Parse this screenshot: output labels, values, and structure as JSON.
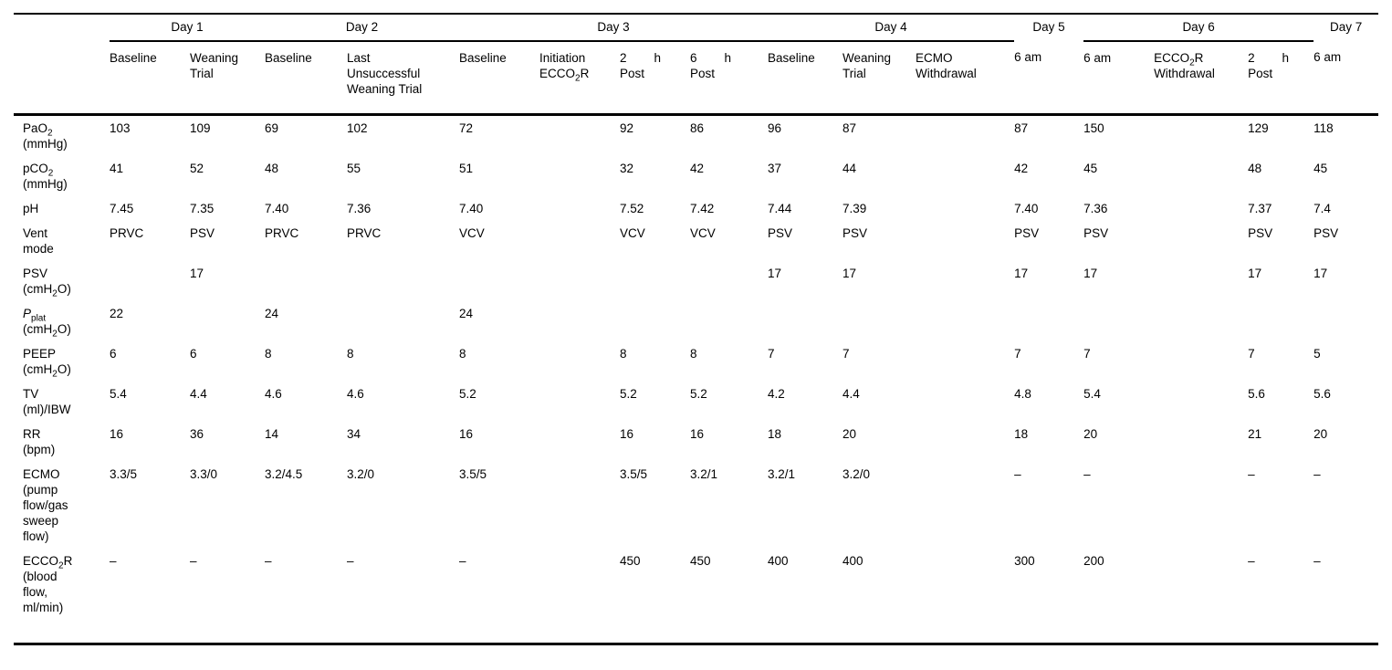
{
  "table": {
    "day_groups": [
      {
        "label": "Day 1",
        "cols": 2,
        "rule": true
      },
      {
        "label": "Day 2",
        "cols": 2,
        "rule": true
      },
      {
        "label": "Day 3",
        "cols": 4,
        "rule": true
      },
      {
        "label": "Day 4",
        "cols": 3,
        "rule": true
      },
      {
        "label": "Day 5",
        "cols": 1,
        "rule": false
      },
      {
        "label": "Day 6",
        "cols": 3,
        "rule": true
      },
      {
        "label": "Day 7",
        "cols": 1,
        "rule": false
      }
    ],
    "sub_headers": [
      "Baseline",
      "Weaning Trial",
      "Baseline",
      "Last Unsuccessful Weaning Trial",
      "Baseline",
      "Initiation ECCO~2~R",
      "2 h Post",
      "6 h Post",
      "Baseline",
      "Weaning Trial",
      "ECMO Withdrawal",
      "6 am",
      "6 am",
      "ECCO~2~R Withdrawal",
      "2 h Post",
      "6 am"
    ],
    "rows": [
      {
        "label": "PaO~2~ (mmHg)",
        "values": [
          "103",
          "109",
          "69",
          "102",
          "72",
          "",
          "92",
          "86",
          "96",
          "87",
          "",
          "87",
          "150",
          "",
          "129",
          "118"
        ]
      },
      {
        "label": "pCO~2~ (mmHg)",
        "values": [
          "41",
          "52",
          "48",
          "55",
          "51",
          "",
          "32",
          "42",
          "37",
          "44",
          "",
          "42",
          "45",
          "",
          "48",
          "45"
        ]
      },
      {
        "label": "pH",
        "values": [
          "7.45",
          "7.35",
          "7.40",
          "7.36",
          "7.40",
          "",
          "7.52",
          "7.42",
          "7.44",
          "7.39",
          "",
          "7.40",
          "7.36",
          "",
          "7.37",
          "7.4"
        ]
      },
      {
        "label": "Vent mode",
        "values": [
          "PRVC",
          "PSV",
          "PRVC",
          "PRVC",
          "VCV",
          "",
          "VCV",
          "VCV",
          "PSV",
          "PSV",
          "",
          "PSV",
          "PSV",
          "",
          "PSV",
          "PSV"
        ]
      },
      {
        "label": "PSV (cmH~2~O)",
        "values": [
          "",
          "17",
          "",
          "",
          "",
          "",
          "",
          "",
          "17",
          "17",
          "",
          "17",
          "17",
          "",
          "17",
          "17"
        ]
      },
      {
        "label": "*P*~plat~ (cmH~2~O)",
        "values": [
          "22",
          "",
          "24",
          "",
          "24",
          "",
          "",
          "",
          "",
          "",
          "",
          "",
          "",
          "",
          "",
          ""
        ]
      },
      {
        "label": "PEEP (cmH~2~O)",
        "values": [
          "6",
          "6",
          "8",
          "8",
          "8",
          "",
          "8",
          "8",
          "7",
          "7",
          "",
          "7",
          "7",
          "",
          "7",
          "5"
        ]
      },
      {
        "label": "TV (ml)/IBW",
        "values": [
          "5.4",
          "4.4",
          "4.6",
          "4.6",
          "5.2",
          "",
          "5.2",
          "5.2",
          "4.2",
          "4.4",
          "",
          "4.8",
          "5.4",
          "",
          "5.6",
          "5.6"
        ]
      },
      {
        "label": "RR (bpm)",
        "values": [
          "16",
          "36",
          "14",
          "34",
          "16",
          "",
          "16",
          "16",
          "18",
          "20",
          "",
          "18",
          "20",
          "",
          "21",
          "20"
        ]
      },
      {
        "label": "ECMO (pump flow/gas sweep flow)",
        "values": [
          "3.3/5",
          "3.3/0",
          "3.2/4.5",
          "3.2/0",
          "3.5/5",
          "",
          "3.5/5",
          "3.2/1",
          "3.2/1",
          "3.2/0",
          "",
          "–",
          "–",
          "",
          "–",
          "–"
        ]
      },
      {
        "label": "ECCO~2~R (blood flow, ml/min)",
        "values": [
          "–",
          "–",
          "–",
          "–",
          "–",
          "",
          "450",
          "450",
          "400",
          "400",
          "",
          "300",
          "200",
          "",
          "–",
          "–"
        ]
      }
    ]
  }
}
